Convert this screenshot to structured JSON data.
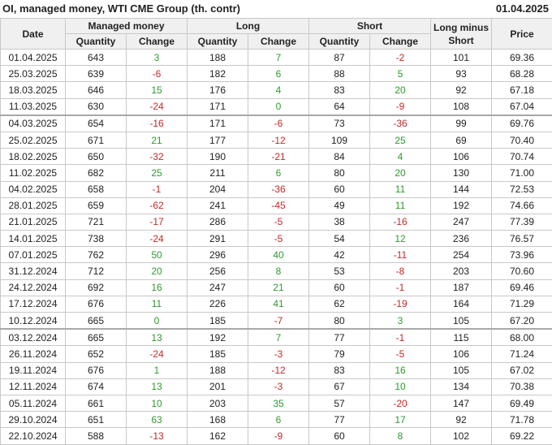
{
  "header": {
    "title": "OI, managed money, WTI CME Group (th. contr)",
    "date": "01.04.2025"
  },
  "table": {
    "columns": {
      "date": "Date",
      "managed": "Managed money",
      "long": "Long",
      "short": "Short",
      "net": "Long minus Short",
      "price": "Price",
      "quantity": "Quantity",
      "change": "Change"
    },
    "groups": [
      [
        [
          "01.04.2025",
          "643",
          "3",
          "188",
          "7",
          "87",
          "-2",
          "101",
          "69.36"
        ],
        [
          "25.03.2025",
          "639",
          "-6",
          "182",
          "6",
          "88",
          "5",
          "93",
          "68.28"
        ],
        [
          "18.03.2025",
          "646",
          "15",
          "176",
          "4",
          "83",
          "20",
          "92",
          "67.18"
        ],
        [
          "11.03.2025",
          "630",
          "-24",
          "171",
          "0",
          "64",
          "-9",
          "108",
          "67.04"
        ]
      ],
      [
        [
          "04.03.2025",
          "654",
          "-16",
          "171",
          "-6",
          "73",
          "-36",
          "99",
          "69.76"
        ],
        [
          "25.02.2025",
          "671",
          "21",
          "177",
          "-12",
          "109",
          "25",
          "69",
          "70.40"
        ],
        [
          "18.02.2025",
          "650",
          "-32",
          "190",
          "-21",
          "84",
          "4",
          "106",
          "70.74"
        ],
        [
          "11.02.2025",
          "682",
          "25",
          "211",
          "6",
          "80",
          "20",
          "130",
          "71.00"
        ],
        [
          "04.02.2025",
          "658",
          "-1",
          "204",
          "-36",
          "60",
          "11",
          "144",
          "72.53"
        ],
        [
          "28.01.2025",
          "659",
          "-62",
          "241",
          "-45",
          "49",
          "11",
          "192",
          "74.66"
        ],
        [
          "21.01.2025",
          "721",
          "-17",
          "286",
          "-5",
          "38",
          "-16",
          "247",
          "77.39"
        ],
        [
          "14.01.2025",
          "738",
          "-24",
          "291",
          "-5",
          "54",
          "12",
          "236",
          "76.57"
        ],
        [
          "07.01.2025",
          "762",
          "50",
          "296",
          "40",
          "42",
          "-11",
          "254",
          "73.96"
        ],
        [
          "31.12.2024",
          "712",
          "20",
          "256",
          "8",
          "53",
          "-8",
          "203",
          "70.60"
        ],
        [
          "24.12.2024",
          "692",
          "16",
          "247",
          "21",
          "60",
          "-1",
          "187",
          "69.46"
        ],
        [
          "17.12.2024",
          "676",
          "11",
          "226",
          "41",
          "62",
          "-19",
          "164",
          "71.29"
        ],
        [
          "10.12.2024",
          "665",
          "0",
          "185",
          "-7",
          "80",
          "3",
          "105",
          "67.20"
        ]
      ],
      [
        [
          "03.12.2024",
          "665",
          "13",
          "192",
          "7",
          "77",
          "-1",
          "115",
          "68.00"
        ],
        [
          "26.11.2024",
          "652",
          "-24",
          "185",
          "-3",
          "79",
          "-5",
          "106",
          "71.24"
        ],
        [
          "19.11.2024",
          "676",
          "1",
          "188",
          "-12",
          "83",
          "16",
          "105",
          "67.02"
        ],
        [
          "12.11.2024",
          "674",
          "13",
          "201",
          "-3",
          "67",
          "10",
          "134",
          "70.38"
        ],
        [
          "05.11.2024",
          "661",
          "10",
          "203",
          "35",
          "57",
          "-20",
          "147",
          "69.49"
        ],
        [
          "29.10.2024",
          "651",
          "63",
          "168",
          "6",
          "77",
          "17",
          "92",
          "71.78"
        ],
        [
          "22.10.2024",
          "588",
          "-13",
          "162",
          "-9",
          "60",
          "8",
          "102",
          "69.22"
        ]
      ]
    ]
  }
}
